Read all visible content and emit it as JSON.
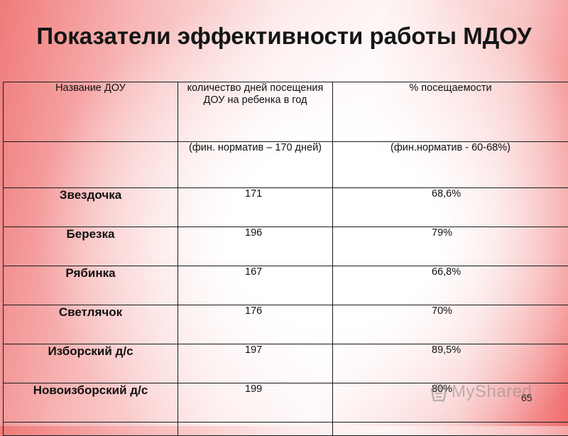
{
  "title": "Показатели эффективности работы МДОУ",
  "table": {
    "header": {
      "name": "Название ДОУ",
      "days": "количество дней посещения ДОУ на ребенка в год",
      "percent": "% посещаемости"
    },
    "norm": {
      "name": "",
      "days": "(фин. норматив – 170 дней)",
      "percent": "(фин.норматив - 60-68%)"
    },
    "rows": [
      {
        "name": "Звездочка",
        "days": "171",
        "percent": "68,6%"
      },
      {
        "name": "Березка",
        "days": "196",
        "percent": "79%"
      },
      {
        "name": "Рябинка",
        "days": "167",
        "percent": "66,8%"
      },
      {
        "name": "Светлячок",
        "days": "176",
        "percent": "70%"
      },
      {
        "name": "Изборский д/с",
        "days": "197",
        "percent": "89,5%"
      },
      {
        "name": "Новоизборский д/с",
        "days": "199",
        "percent": "80%"
      }
    ]
  },
  "watermark": "MyShared",
  "slide_number": "65"
}
